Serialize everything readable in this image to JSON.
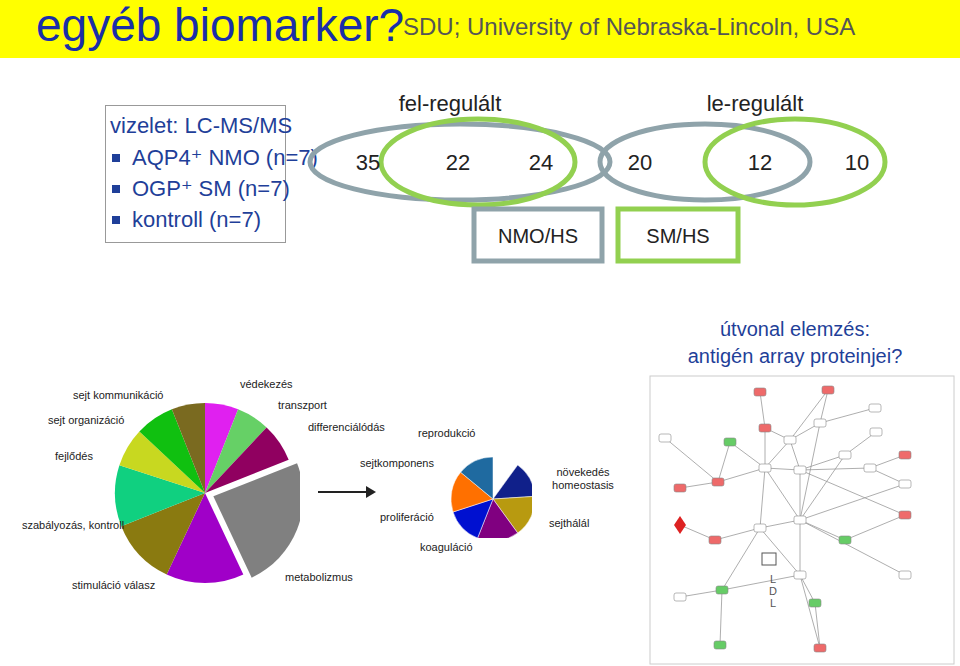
{
  "header": {
    "title": "egyéb biomarker?",
    "subtitle": "SDU; University of Nebraska-Lincoln, USA"
  },
  "method_box": {
    "title": "vizelet: LC-MS/MS",
    "items": [
      "AQP4⁺ NMO (n=7)",
      "OGP⁺ SM (n=7)",
      "kontroll (n=7)"
    ]
  },
  "venn": {
    "groups": [
      {
        "title": "fel-regulált",
        "values": [
          35,
          22,
          24
        ]
      },
      {
        "title": "le-regulált",
        "values": [
          20,
          12,
          10
        ]
      }
    ],
    "legend": [
      {
        "label": "NMO/HS",
        "color": "#8fa3aa"
      },
      {
        "label": "SM/HS",
        "color": "#92d050"
      }
    ]
  },
  "chart_data": [
    {
      "type": "pie",
      "categories": [
        "védekezés",
        "transzport",
        "differenciálódás",
        null,
        "metabolizmus",
        "stimuláció válasz",
        "szabályozás, kontroll",
        "fejlődés",
        "sejt organizáció",
        "sejt kommunikáció"
      ],
      "values": [
        6,
        6,
        7,
        24,
        14,
        12,
        11,
        7,
        7,
        6
      ],
      "colors": [
        "#e020f0",
        "#66d066",
        "#900060",
        "#808080",
        "#a000c8",
        "#8a7a10",
        "#10d080",
        "#c8d820",
        "#10c010",
        "#7a6a20"
      ]
    },
    {
      "type": "pie",
      "categories": [
        null,
        "növekedés homeostasis",
        "sejthálál",
        "koaguláció",
        "proliferáció",
        "sejtkomponens",
        "reprodukció"
      ],
      "values": [
        10,
        14,
        16,
        16,
        14,
        16,
        14
      ],
      "colors": [
        "#ffffff",
        "#10208a",
        "#b89a10",
        "#800080",
        "#0010d0",
        "#ff7000",
        "#1f6aa0"
      ]
    }
  ],
  "pathway": {
    "title": [
      "útvonal elemzés:",
      "antigén array proteinjei?"
    ],
    "network_labels": [
      "LDL"
    ]
  }
}
